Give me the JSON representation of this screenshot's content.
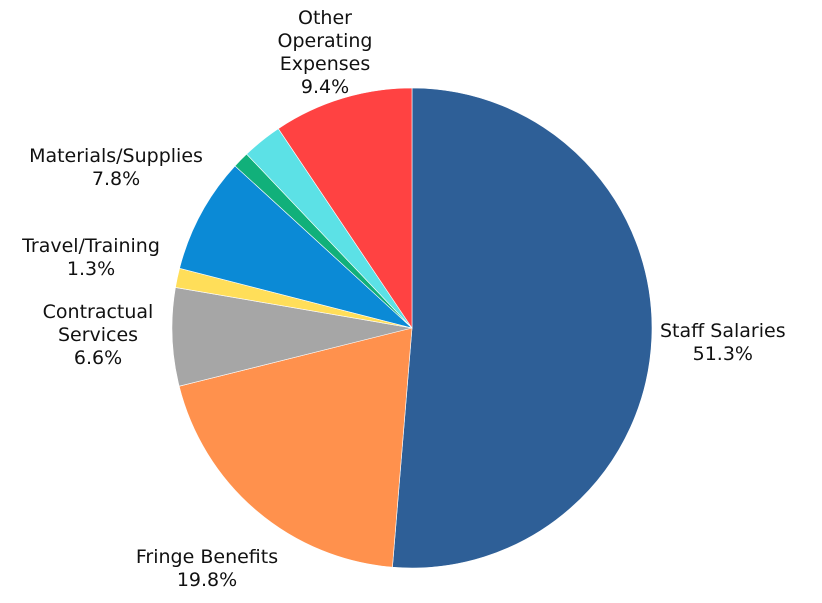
{
  "chart_data": {
    "type": "pie",
    "title": "",
    "slices": [
      {
        "name": "Staff Salaries",
        "value": 51.3,
        "label": "51.3%",
        "color": "#2E5F97"
      },
      {
        "name": "Fringe Benefits",
        "value": 19.8,
        "label": "19.8%",
        "color": "#FF914D"
      },
      {
        "name": "Contractual Services",
        "value": 6.6,
        "label": "6.6%",
        "color": "#A6A6A6"
      },
      {
        "name": "Travel/Training",
        "value": 1.3,
        "label": "1.3%",
        "color": "#FFDE59"
      },
      {
        "name": "Materials/Supplies",
        "value": 7.8,
        "label": "7.8%",
        "color": "#0B8AD6"
      },
      {
        "name": "",
        "value": 1.1,
        "label": "",
        "color": "#11B07A"
      },
      {
        "name": "",
        "value": 2.7,
        "label": "",
        "color": "#5CE1E6"
      },
      {
        "name": "Other Operating Expenses",
        "value": 9.4,
        "label": "9.4%",
        "color": "#FF4242"
      }
    ],
    "start_angle": "top",
    "direction": "clockwise",
    "legend": "none"
  }
}
